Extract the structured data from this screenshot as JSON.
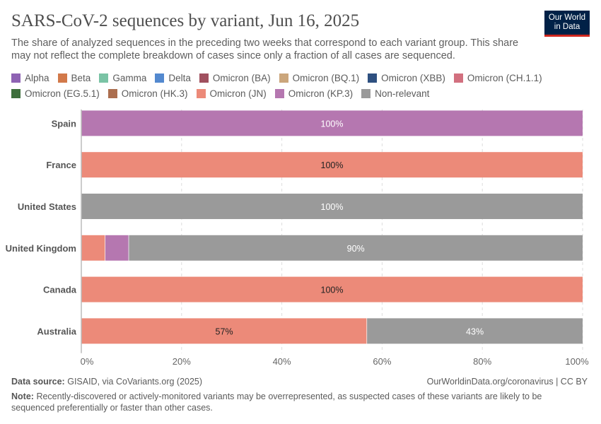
{
  "logo": {
    "line1": "Our World",
    "line2": "in Data"
  },
  "chart_data": {
    "type": "bar",
    "orientation": "horizontal-stacked",
    "title": "SARS-CoV-2 sequences by variant, Jun 16, 2025",
    "subtitle": "The share of analyzed sequences in the preceding two weeks that correspond to each variant group. This share may not reflect the complete breakdown of cases since only a fraction of all cases are sequenced.",
    "xlim": [
      0,
      100
    ],
    "x_ticks": [
      "0%",
      "20%",
      "40%",
      "60%",
      "80%",
      "100%"
    ],
    "grid": true,
    "legend_placement": "top",
    "legend": [
      {
        "name": "Alpha",
        "color": "#8e62b3"
      },
      {
        "name": "Beta",
        "color": "#d2794a"
      },
      {
        "name": "Gamma",
        "color": "#7ac3a5"
      },
      {
        "name": "Delta",
        "color": "#5389cf"
      },
      {
        "name": "Omicron (BA)",
        "color": "#a0505f"
      },
      {
        "name": "Omicron (BQ.1)",
        "color": "#cba67c"
      },
      {
        "name": "Omicron (XBB)",
        "color": "#2e5080"
      },
      {
        "name": "Omicron (CH.1.1)",
        "color": "#d2707f"
      },
      {
        "name": "Omicron (EG.5.1)",
        "color": "#3e6f3c"
      },
      {
        "name": "Omicron (HK.3)",
        "color": "#ac6e4f"
      },
      {
        "name": "Omicron (JN)",
        "color": "#ec8a79"
      },
      {
        "name": "Omicron (KP.3)",
        "color": "#b577b0"
      },
      {
        "name": "Non-relevant",
        "color": "#9a9a9a"
      }
    ],
    "categories": [
      "Spain",
      "France",
      "United States",
      "United Kingdom",
      "Canada",
      "Australia"
    ],
    "rows": [
      {
        "country": "Spain",
        "segments": [
          {
            "series": "Omicron (KP.3)",
            "value": 100,
            "label": "100%"
          }
        ]
      },
      {
        "country": "France",
        "segments": [
          {
            "series": "Omicron (JN)",
            "value": 100,
            "label": "100%"
          }
        ]
      },
      {
        "country": "United States",
        "segments": [
          {
            "series": "Non-relevant",
            "value": 100,
            "label": "100%"
          }
        ]
      },
      {
        "country": "United Kingdom",
        "segments": [
          {
            "series": "Omicron (JN)",
            "value": 4.8,
            "label": ""
          },
          {
            "series": "Omicron (KP.3)",
            "value": 4.7,
            "label": ""
          },
          {
            "series": "Non-relevant",
            "value": 90.5,
            "label": "90%"
          }
        ]
      },
      {
        "country": "Canada",
        "segments": [
          {
            "series": "Omicron (JN)",
            "value": 100,
            "label": "100%"
          }
        ]
      },
      {
        "country": "Australia",
        "segments": [
          {
            "series": "Omicron (JN)",
            "value": 57,
            "label": "57%"
          },
          {
            "series": "Non-relevant",
            "value": 43,
            "label": "43%"
          }
        ]
      }
    ]
  },
  "footer": {
    "source_label": "Data source:",
    "source": "GISAID, via CoVariants.org (2025)",
    "credit": "OurWorldinData.org/coronavirus | CC BY",
    "note_label": "Note:",
    "note": "Recently-discovered or actively-monitored variants may be overrepresented, as suspected cases of these variants are likely to be sequenced preferentially or faster than other cases."
  }
}
